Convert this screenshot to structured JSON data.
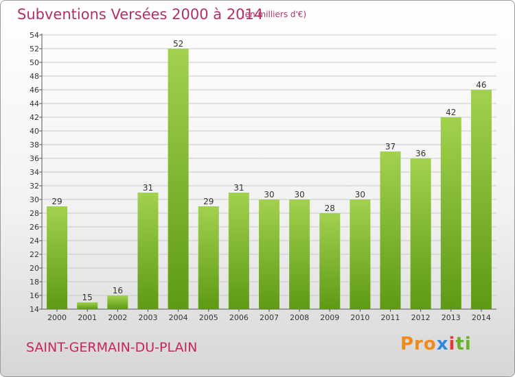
{
  "header": {
    "title": "Subventions Versées 2000 à 2014",
    "subtitle": "(en milliers d'€)"
  },
  "footer": {
    "place": "SAINT-GERMAIN-DU-PLAIN",
    "logo": "Proxiti",
    "logo_parts": [
      "Pro",
      "x",
      "i",
      "ti"
    ]
  },
  "colors": {
    "title": "#b0306a",
    "bar_top": "#a2d14e",
    "bar_bottom": "#5e9a14",
    "grid": "#c8c8c8"
  },
  "chart_data": {
    "type": "bar",
    "title": "Subventions Versées 2000 à 2014",
    "subtitle": "(en milliers d'€)",
    "xlabel": "",
    "ylabel": "",
    "categories": [
      "2000",
      "2001",
      "2002",
      "2003",
      "2004",
      "2005",
      "2006",
      "2007",
      "2008",
      "2009",
      "2010",
      "2011",
      "2012",
      "2013",
      "2014"
    ],
    "values": [
      29,
      15,
      16,
      31,
      52,
      29,
      31,
      30,
      30,
      28,
      30,
      37,
      36,
      42,
      46
    ],
    "ylim": [
      14,
      54
    ],
    "ytick_step": 2,
    "grid": true
  }
}
